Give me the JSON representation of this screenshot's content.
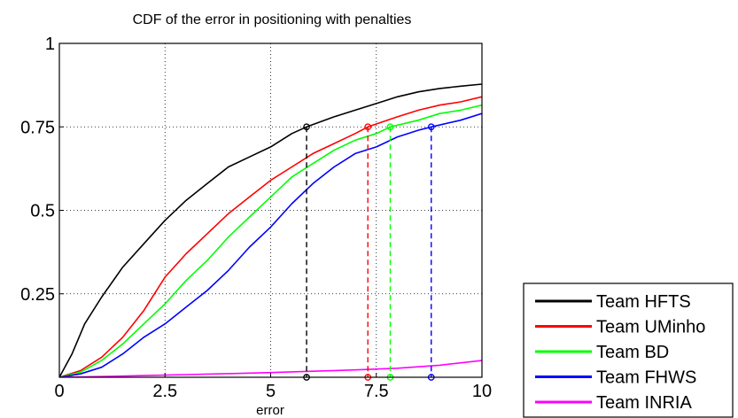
{
  "chart_data": {
    "type": "line",
    "title": "CDF of the error in positioning with penalties",
    "xlabel": "error",
    "ylabel": "",
    "xlim": [
      0,
      10
    ],
    "ylim": [
      0,
      1
    ],
    "x_ticks": [
      "0",
      "2.5",
      "5",
      "7.5",
      "10"
    ],
    "y_ticks": [
      "0.25",
      "0.5",
      "0.75",
      "1"
    ],
    "grid": true,
    "legend_position": "outside-bottom-right",
    "series": [
      {
        "name": "Team HFTS",
        "color": "#000000",
        "x": [
          0,
          0.3,
          0.6,
          1,
          1.5,
          2,
          2.5,
          3,
          3.5,
          4,
          4.5,
          5,
          5.5,
          5.85,
          6.5,
          7,
          7.5,
          8,
          8.5,
          9,
          9.5,
          10
        ],
        "y": [
          0,
          0.07,
          0.16,
          0.24,
          0.33,
          0.4,
          0.47,
          0.53,
          0.58,
          0.63,
          0.66,
          0.69,
          0.73,
          0.75,
          0.78,
          0.8,
          0.82,
          0.84,
          0.855,
          0.865,
          0.872,
          0.878
        ]
      },
      {
        "name": "Team UMinho",
        "color": "#ff0000",
        "x": [
          0,
          0.5,
          1,
          1.5,
          2,
          2.5,
          3,
          3.5,
          4,
          4.5,
          5,
          5.5,
          6,
          6.5,
          7,
          7.3,
          8,
          8.5,
          9,
          9.5,
          10
        ],
        "y": [
          0,
          0.02,
          0.06,
          0.12,
          0.2,
          0.3,
          0.37,
          0.43,
          0.49,
          0.54,
          0.59,
          0.63,
          0.67,
          0.7,
          0.73,
          0.75,
          0.78,
          0.8,
          0.815,
          0.825,
          0.84
        ]
      },
      {
        "name": "Team BD",
        "color": "#00ff00",
        "x": [
          0,
          0.5,
          1,
          1.5,
          2,
          2.5,
          3,
          3.5,
          4,
          4.5,
          5,
          5.5,
          6,
          6.5,
          7,
          7.5,
          7.83,
          8.5,
          9,
          9.5,
          10
        ],
        "y": [
          0,
          0.015,
          0.05,
          0.1,
          0.16,
          0.22,
          0.29,
          0.35,
          0.42,
          0.48,
          0.54,
          0.6,
          0.64,
          0.68,
          0.71,
          0.73,
          0.75,
          0.77,
          0.79,
          0.8,
          0.815
        ]
      },
      {
        "name": "Team FHWS",
        "color": "#0000ff",
        "x": [
          0,
          0.5,
          1,
          1.5,
          2,
          2.5,
          3,
          3.5,
          4,
          4.5,
          5,
          5.5,
          6,
          6.5,
          7,
          7.5,
          8,
          8.5,
          8.8,
          9.5,
          10
        ],
        "y": [
          0,
          0.01,
          0.03,
          0.07,
          0.12,
          0.16,
          0.21,
          0.26,
          0.32,
          0.39,
          0.45,
          0.52,
          0.58,
          0.63,
          0.67,
          0.69,
          0.72,
          0.74,
          0.75,
          0.77,
          0.79
        ]
      },
      {
        "name": "Team INRIA",
        "color": "#ff00ff",
        "x": [
          0,
          1,
          2,
          3,
          4,
          5,
          6,
          7,
          8,
          9,
          10
        ],
        "y": [
          0,
          0.002,
          0.005,
          0.008,
          0.011,
          0.014,
          0.018,
          0.022,
          0.027,
          0.036,
          0.05
        ]
      }
    ],
    "annotations": [
      {
        "x": 5.85,
        "y": 0.75,
        "color": "#000000",
        "style": "dashed"
      },
      {
        "x": 7.3,
        "y": 0.75,
        "color": "#ff0000",
        "style": "dashed"
      },
      {
        "x": 7.83,
        "y": 0.75,
        "color": "#00ff00",
        "style": "dashed"
      },
      {
        "x": 8.8,
        "y": 0.75,
        "color": "#0000ff",
        "style": "dashed"
      }
    ]
  }
}
